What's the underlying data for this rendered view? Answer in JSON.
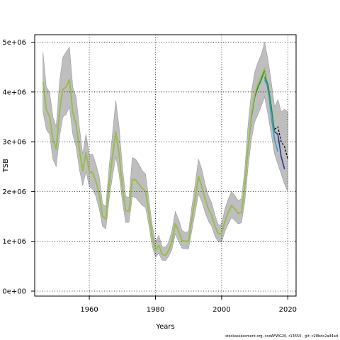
{
  "chart_data": {
    "type": "line",
    "title": "",
    "xlabel": "Years",
    "ylabel": "TSB",
    "xlim": [
      1943.5,
      2022.5
    ],
    "ylim": [
      -100000,
      5150000
    ],
    "x_ticks": [
      1960,
      1980,
      2000,
      2020
    ],
    "x_tick_labels": [
      "1960",
      "1980",
      "2000",
      "2020"
    ],
    "y_ticks": [
      0,
      1000000,
      2000000,
      3000000,
      4000000,
      5000000
    ],
    "y_tick_labels": [
      "0e+00",
      "1e+06",
      "2e+06",
      "3e+06",
      "4e+06",
      "5e+06"
    ],
    "grid": true,
    "grid_style": "dotted",
    "confidence_band_color": "#bebebe",
    "series": [
      {
        "color": "#1f8a3a",
        "x": [
          1946,
          1947,
          1948,
          1949,
          1950,
          1951,
          1952,
          1953,
          1954,
          1955,
          1956,
          1957,
          1958,
          1959,
          1960,
          1961,
          1962,
          1963,
          1964,
          1965,
          1966,
          1967,
          1968,
          1969,
          1970,
          1971,
          1972,
          1973,
          1974,
          1975,
          1976,
          1977,
          1978,
          1979,
          1980,
          1981,
          1982,
          1983,
          1984,
          1985,
          1986,
          1987,
          1988,
          1989,
          1990,
          1991,
          1992,
          1993,
          1994,
          1995,
          1996,
          1997,
          1998,
          1999,
          2000,
          2001,
          2002,
          2003,
          2004,
          2005,
          2006,
          2007,
          2008,
          2009,
          2010,
          2011,
          2012,
          2013,
          2014,
          2015
        ],
        "values": [
          4200000,
          3650000,
          3500000,
          3050000,
          2850000,
          3600000,
          4050000,
          4100000,
          4250000,
          3600000,
          3350000,
          2850000,
          2420000,
          2780000,
          2400000,
          2380000,
          2200000,
          1950000,
          1500000,
          1450000,
          2150000,
          2700000,
          3200000,
          2750000,
          2100000,
          1620000,
          1600000,
          2250000,
          2230000,
          2150000,
          2060000,
          2000000,
          1580000,
          1100000,
          820000,
          920000,
          740000,
          720000,
          820000,
          1000000,
          1350000,
          1200000,
          1020000,
          1000000,
          1000000,
          1450000,
          1850000,
          2300000,
          2100000,
          1850000,
          1650000,
          1520000,
          1300000,
          1150000,
          1150000,
          1400000,
          1580000,
          1720000,
          1650000,
          1560000,
          1580000,
          2100000,
          2900000,
          3500000,
          3900000,
          4100000,
          4250000,
          4450000,
          4050000,
          3700000
        ]
      },
      {
        "color": "#a0c040",
        "x": [
          1946,
          1947,
          1948,
          1949,
          1950,
          1951,
          1952,
          1953,
          1954,
          1955,
          1956,
          1957,
          1958,
          1959,
          1960,
          1961,
          1962,
          1963,
          1964,
          1965,
          1966,
          1967,
          1968,
          1969,
          1970,
          1971,
          1972,
          1973,
          1974,
          1975,
          1976,
          1977,
          1978,
          1979,
          1980,
          1981,
          1982,
          1983,
          1984,
          1985,
          1986,
          1987,
          1988,
          1989,
          1990,
          1991,
          1992,
          1993,
          1994,
          1995,
          1996,
          1997,
          1998,
          1999,
          2000,
          2001,
          2002,
          2003,
          2004,
          2005,
          2006,
          2007,
          2008,
          2009,
          2010,
          2011,
          2012,
          2013,
          2014
        ],
        "values": [
          4200000,
          3650000,
          3500000,
          3050000,
          2850000,
          3600000,
          4050000,
          4100000,
          4250000,
          3600000,
          3350000,
          2850000,
          2420000,
          2780000,
          2400000,
          2380000,
          2200000,
          1950000,
          1500000,
          1450000,
          2150000,
          2700000,
          3200000,
          2750000,
          2100000,
          1620000,
          1600000,
          2250000,
          2230000,
          2150000,
          2060000,
          2000000,
          1580000,
          1100000,
          820000,
          920000,
          740000,
          720000,
          820000,
          1000000,
          1350000,
          1200000,
          1020000,
          1000000,
          1000000,
          1450000,
          1850000,
          2300000,
          2100000,
          1850000,
          1650000,
          1520000,
          1300000,
          1150000,
          1150000,
          1400000,
          1580000,
          1720000,
          1650000,
          1560000,
          1580000,
          2100000,
          2900000,
          3550000,
          3950000,
          4180000,
          4320000,
          4480000,
          4100000
        ]
      },
      {
        "color": "#3a9fbf",
        "x": [
          2013,
          2014,
          2015,
          2016,
          2017
        ],
        "values": [
          4250000,
          4100000,
          3500000,
          3050000,
          2800000
        ]
      },
      {
        "color": "#2a8a5a",
        "x": [
          2013,
          2014,
          2015,
          2016
        ],
        "values": [
          4300000,
          4150000,
          3700000,
          3200000
        ]
      },
      {
        "color": "#3030a0",
        "x": [
          2016,
          2017,
          2018,
          2019
        ],
        "values": [
          3200000,
          3150000,
          2700000,
          2450000
        ]
      },
      {
        "color": "#000000",
        "dashed": true,
        "x": [
          2016,
          2017,
          2018,
          2019,
          2020
        ],
        "values": [
          3250000,
          3300000,
          3000000,
          2900000,
          2650000
        ]
      }
    ],
    "band": {
      "x": [
        1946,
        1947,
        1948,
        1949,
        1950,
        1951,
        1952,
        1953,
        1954,
        1955,
        1956,
        1957,
        1958,
        1959,
        1960,
        1961,
        1962,
        1963,
        1964,
        1965,
        1966,
        1967,
        1968,
        1969,
        1970,
        1971,
        1972,
        1973,
        1974,
        1975,
        1976,
        1977,
        1978,
        1979,
        1980,
        1981,
        1982,
        1983,
        1984,
        1985,
        1986,
        1987,
        1988,
        1989,
        1990,
        1991,
        1992,
        1993,
        1994,
        1995,
        1996,
        1997,
        1998,
        1999,
        2000,
        2001,
        2002,
        2003,
        2004,
        2005,
        2006,
        2007,
        2008,
        2009,
        2010,
        2011,
        2012,
        2013,
        2014,
        2015,
        2016,
        2017,
        2018,
        2019,
        2020
      ],
      "upper": [
        4800000,
        4100000,
        4000000,
        3500000,
        3300000,
        4200000,
        4700000,
        4800000,
        4900000,
        4100000,
        3900000,
        3300000,
        2750000,
        3150000,
        2750000,
        2750000,
        2550000,
        2300000,
        1750000,
        1700000,
        2500000,
        3150000,
        3830000,
        3300000,
        2500000,
        1900000,
        1880000,
        2680000,
        2650000,
        2550000,
        2420000,
        2350000,
        1850000,
        1330000,
        1000000,
        1120000,
        900000,
        880000,
        980000,
        1220000,
        1600000,
        1440000,
        1220000,
        1180000,
        1200000,
        1700000,
        2150000,
        2650000,
        2450000,
        2150000,
        1920000,
        1770000,
        1520000,
        1330000,
        1340000,
        1650000,
        1850000,
        2000000,
        1920000,
        1820000,
        1850000,
        2450000,
        3350000,
        4000000,
        4400000,
        4600000,
        4750000,
        5000000,
        4650000,
        4200000,
        3700000,
        3850000,
        3600000,
        3650000,
        3600000
      ],
      "lower": [
        3600000,
        3250000,
        3150000,
        2650000,
        2500000,
        3100000,
        3500000,
        3550000,
        3700000,
        3150000,
        2900000,
        2450000,
        2120000,
        2400000,
        2100000,
        2050000,
        1900000,
        1650000,
        1300000,
        1250000,
        1850000,
        2300000,
        2700000,
        2350000,
        1800000,
        1380000,
        1380000,
        1900000,
        1880000,
        1800000,
        1720000,
        1680000,
        1330000,
        910000,
        680000,
        760000,
        620000,
        610000,
        700000,
        840000,
        1150000,
        1000000,
        860000,
        850000,
        850000,
        1220000,
        1580000,
        1950000,
        1800000,
        1580000,
        1410000,
        1300000,
        1100000,
        990000,
        990000,
        1200000,
        1350000,
        1480000,
        1420000,
        1350000,
        1370000,
        1800000,
        2500000,
        3050000,
        3400000,
        3550000,
        3720000,
        3900000,
        3550000,
        3150000,
        2750000,
        2550000,
        2350000,
        2150000,
        2000000
      ]
    }
  },
  "footer": {
    "text": "stockassessment.org, codAFWG20, r13550 ,  git: c28bdc2a44ad"
  }
}
